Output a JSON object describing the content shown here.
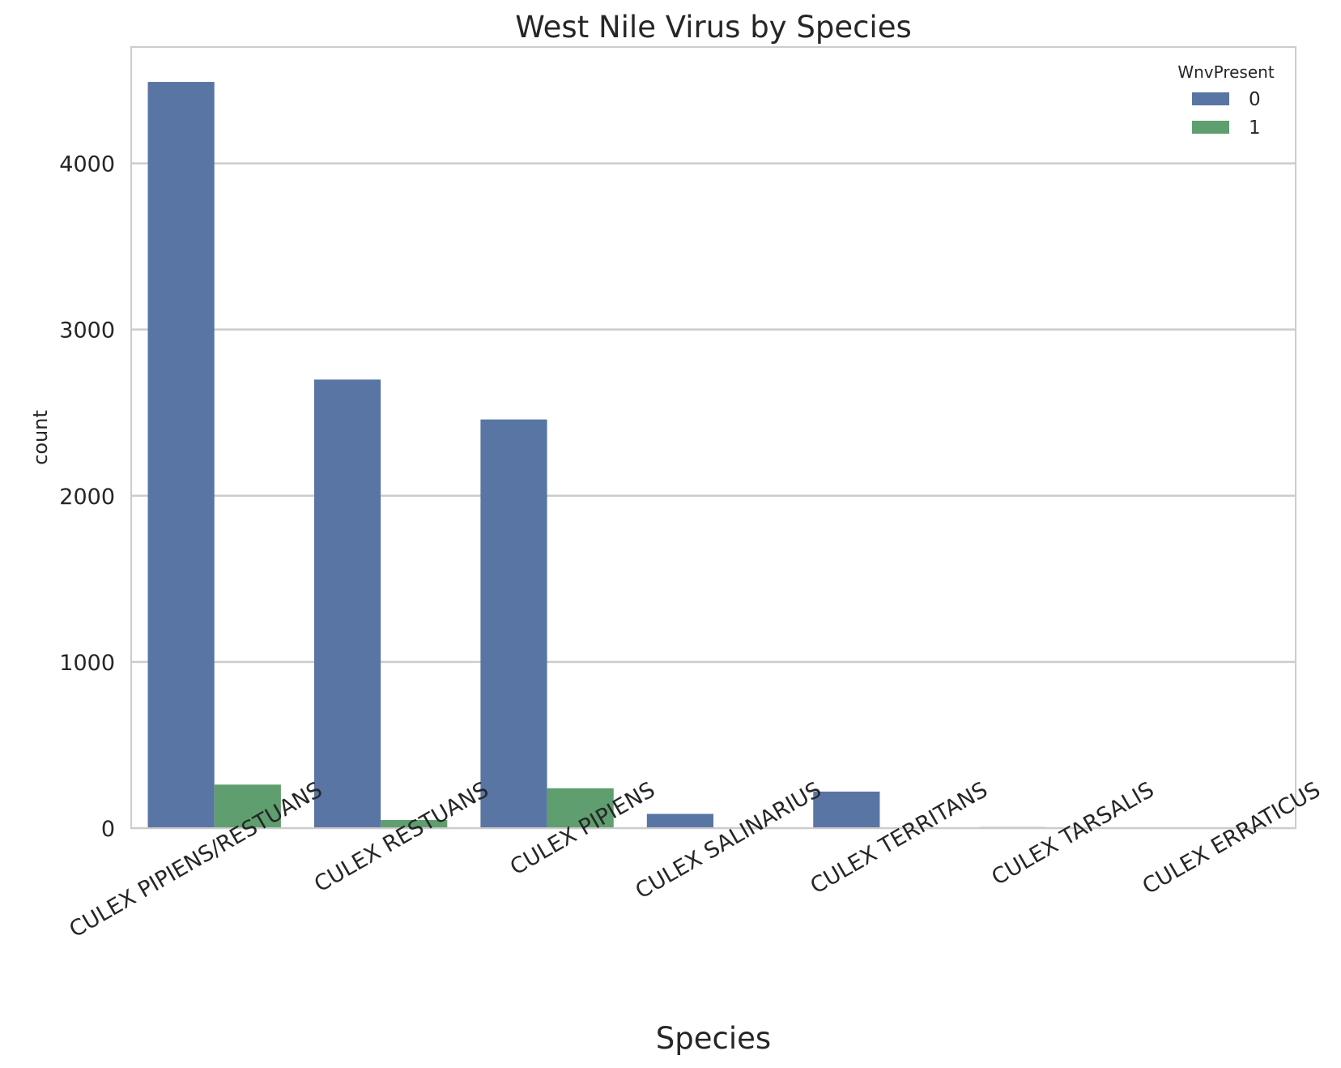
{
  "chart_data": {
    "type": "bar",
    "title": "West Nile Virus by Species",
    "xlabel": "Species",
    "ylabel": "count",
    "ylim": [
      0,
      4700
    ],
    "yticks": [
      0,
      1000,
      2000,
      3000,
      4000
    ],
    "categories": [
      "CULEX PIPIENS/RESTUANS",
      "CULEX RESTUANS",
      "CULEX PIPIENS",
      "CULEX SALINARIUS",
      "CULEX TERRITANS",
      "CULEX TARSALIS",
      "CULEX ERRATICUS"
    ],
    "legend": {
      "title": "WnvPresent",
      "position": "top-right"
    },
    "grid": "horizontal",
    "series": [
      {
        "name": "0",
        "color": "#5975a4",
        "values": [
          4490,
          2699,
          2459,
          86,
          220,
          6,
          1
        ]
      },
      {
        "name": "1",
        "color": "#5f9e6e",
        "values": [
          262,
          49,
          240,
          0,
          0,
          0,
          0
        ]
      }
    ]
  }
}
